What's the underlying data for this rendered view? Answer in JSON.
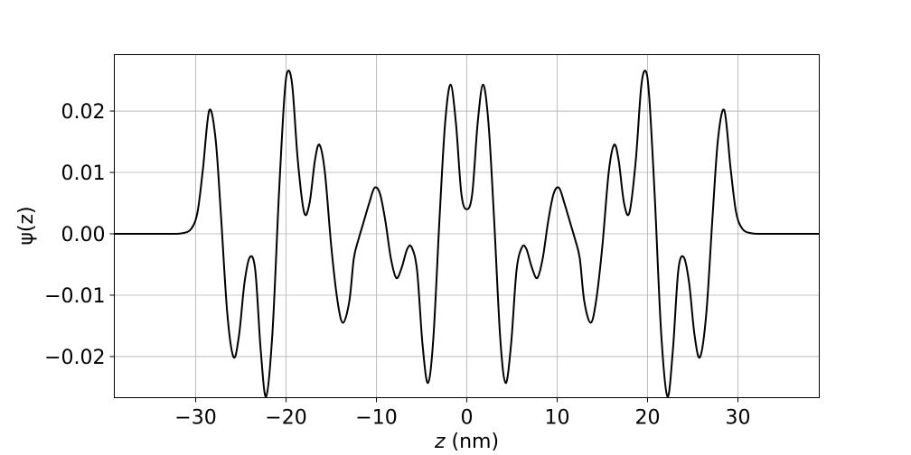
{
  "chart_data": {
    "type": "line",
    "xlabel": "z (nm)",
    "xlabel_var": "z",
    "xlabel_unit": " (nm)",
    "ylabel": "ψ(z)",
    "xlim": [
      -39,
      39
    ],
    "ylim": [
      -0.0267,
      0.0292
    ],
    "grid": true,
    "line_color": "#000000",
    "x_ticks": [
      {
        "value": -30,
        "label": "−30"
      },
      {
        "value": -20,
        "label": "−20"
      },
      {
        "value": -10,
        "label": "−10"
      },
      {
        "value": 0,
        "label": "0"
      },
      {
        "value": 10,
        "label": "10"
      },
      {
        "value": 20,
        "label": "20"
      },
      {
        "value": 30,
        "label": "30"
      }
    ],
    "y_ticks": [
      {
        "value": 0.02,
        "label": "0.02"
      },
      {
        "value": 0.01,
        "label": "0.01"
      },
      {
        "value": 0.0,
        "label": "0.00"
      },
      {
        "value": -0.01,
        "label": "−0.01"
      },
      {
        "value": -0.02,
        "label": "−0.02"
      }
    ],
    "series": [
      {
        "points": [
          [
            -39,
            0.0
          ],
          [
            -33,
            0.0
          ],
          [
            -31.5,
            0.0001
          ],
          [
            -30.5,
            0.0008
          ],
          [
            -29.8,
            0.0035
          ],
          [
            -29.2,
            0.0105
          ],
          [
            -28.5,
            0.0201
          ],
          [
            -27.8,
            0.0155
          ],
          [
            -27.2,
            0.003
          ],
          [
            -26.5,
            -0.013
          ],
          [
            -25.8,
            -0.0201
          ],
          [
            -25.2,
            -0.0165
          ],
          [
            -24.6,
            -0.008
          ],
          [
            -24.0,
            -0.0038
          ],
          [
            -23.4,
            -0.006
          ],
          [
            -22.8,
            -0.019
          ],
          [
            -22.2,
            -0.0265
          ],
          [
            -21.5,
            -0.016
          ],
          [
            -20.8,
            0.006
          ],
          [
            -20.2,
            0.022
          ],
          [
            -19.8,
            0.0265
          ],
          [
            -19.3,
            0.024
          ],
          [
            -18.7,
            0.012
          ],
          [
            -18.0,
            0.0035
          ],
          [
            -17.4,
            0.005
          ],
          [
            -16.8,
            0.012
          ],
          [
            -16.3,
            0.0145
          ],
          [
            -15.7,
            0.01
          ],
          [
            -15.0,
            -0.002
          ],
          [
            -14.3,
            -0.011
          ],
          [
            -13.7,
            -0.0145
          ],
          [
            -13.0,
            -0.011
          ],
          [
            -12.5,
            -0.004
          ],
          [
            -12.0,
            -0.001
          ],
          [
            -11.5,
            0.0015
          ],
          [
            -10.8,
            0.005
          ],
          [
            -10.2,
            0.0075
          ],
          [
            -9.6,
            0.0065
          ],
          [
            -9.0,
            0.002
          ],
          [
            -8.4,
            -0.004
          ],
          [
            -7.8,
            -0.0072
          ],
          [
            -7.2,
            -0.0055
          ],
          [
            -6.6,
            -0.0025
          ],
          [
            -6.1,
            -0.0022
          ],
          [
            -5.5,
            -0.006
          ],
          [
            -4.9,
            -0.018
          ],
          [
            -4.3,
            -0.0243
          ],
          [
            -3.7,
            -0.017
          ],
          [
            -3.0,
            0.003
          ],
          [
            -2.4,
            0.018
          ],
          [
            -1.8,
            0.0243
          ],
          [
            -1.2,
            0.018
          ],
          [
            -0.6,
            0.0065
          ],
          [
            0.0,
            0.004
          ],
          [
            0.6,
            0.0065
          ],
          [
            1.2,
            0.018
          ],
          [
            1.8,
            0.0243
          ],
          [
            2.4,
            0.018
          ],
          [
            3.0,
            0.003
          ],
          [
            3.7,
            -0.017
          ],
          [
            4.3,
            -0.0243
          ],
          [
            4.9,
            -0.018
          ],
          [
            5.5,
            -0.006
          ],
          [
            6.1,
            -0.0022
          ],
          [
            6.6,
            -0.0025
          ],
          [
            7.2,
            -0.0055
          ],
          [
            7.8,
            -0.0072
          ],
          [
            8.4,
            -0.004
          ],
          [
            9.0,
            0.002
          ],
          [
            9.6,
            0.0065
          ],
          [
            10.2,
            0.0075
          ],
          [
            10.8,
            0.005
          ],
          [
            11.5,
            0.0015
          ],
          [
            12.0,
            -0.001
          ],
          [
            12.5,
            -0.004
          ],
          [
            13.0,
            -0.011
          ],
          [
            13.7,
            -0.0145
          ],
          [
            14.3,
            -0.011
          ],
          [
            15.0,
            -0.002
          ],
          [
            15.7,
            0.01
          ],
          [
            16.3,
            0.0145
          ],
          [
            16.8,
            0.012
          ],
          [
            17.4,
            0.005
          ],
          [
            18.0,
            0.0035
          ],
          [
            18.7,
            0.012
          ],
          [
            19.3,
            0.024
          ],
          [
            19.8,
            0.0265
          ],
          [
            20.2,
            0.022
          ],
          [
            20.8,
            0.006
          ],
          [
            21.5,
            -0.016
          ],
          [
            22.2,
            -0.0265
          ],
          [
            22.8,
            -0.019
          ],
          [
            23.4,
            -0.006
          ],
          [
            24.0,
            -0.0038
          ],
          [
            24.6,
            -0.008
          ],
          [
            25.2,
            -0.0165
          ],
          [
            25.8,
            -0.0201
          ],
          [
            26.5,
            -0.013
          ],
          [
            27.2,
            0.003
          ],
          [
            27.8,
            0.0155
          ],
          [
            28.5,
            0.0201
          ],
          [
            29.2,
            0.0105
          ],
          [
            29.8,
            0.0035
          ],
          [
            30.5,
            0.0008
          ],
          [
            31.5,
            0.0001
          ],
          [
            33,
            0.0
          ],
          [
            39,
            0.0
          ]
        ]
      }
    ]
  }
}
